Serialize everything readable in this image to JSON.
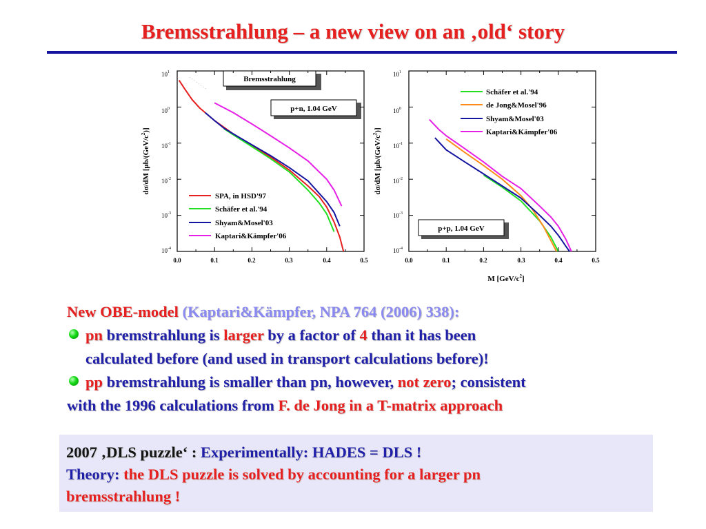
{
  "slide": {
    "title": "Bremsstrahlung – a new view on an ‚old‘ story",
    "colors": {
      "title": "#e61f1f",
      "rule": "#1414a0",
      "text_blue": "#1f1fa8",
      "text_red": "#e61f1f",
      "cite": "#8a8af0",
      "box_bg": "#e7e7f9",
      "bullet": "#13d913"
    }
  },
  "plots": {
    "y_ticks": [
      "10",
      "10",
      "10",
      "10",
      "10",
      "10"
    ],
    "y_exps": [
      "1",
      "0",
      "-1",
      "-2",
      "-3",
      "-4"
    ],
    "x_ticks": [
      "0.0",
      "0.1",
      "0.2",
      "0.3",
      "0.4",
      "0.5"
    ],
    "ylabel_main": "dσ/dM  [μb/(GeV/c",
    "ylabel_exp": "2",
    "ylabel_tail": ")]",
    "xlabel_main": "M  [GeV/c",
    "xlabel_exp": "2",
    "xlabel_tail": "]",
    "left": {
      "header_box": "Bremsstrahlung",
      "reaction_box": "p+n,  1.04 GeV",
      "legend": [
        "SPA, in HSD'97",
        "Schäfer et al.'94",
        "Shyam&Mosel'03",
        "Kaptari&Kämpfer'06"
      ]
    },
    "right": {
      "reaction_box": "p+p,  1.04 GeV",
      "legend": [
        "Schäfer et al.'94",
        "de Jong&Mosel'96",
        "Shyam&Mosel'03",
        "Kaptari&Kämpfer'06"
      ]
    }
  },
  "chart_data": [
    {
      "type": "line",
      "title": "Bremsstrahlung — p+n,  1.04 GeV",
      "xlabel": "M  [GeV/c2]",
      "ylabel": "dσ/dM  [μb/(GeV/c2)]",
      "xlim": [
        0.0,
        0.5
      ],
      "ylim": [
        0.0001,
        10
      ],
      "yscale": "log",
      "legend_position": "bottom-left",
      "series": [
        {
          "name": "SPA, in HSD'97",
          "color": "#e61f1f",
          "x": [
            0.005,
            0.02,
            0.04,
            0.06,
            0.075,
            0.1,
            0.15,
            0.2,
            0.25,
            0.3,
            0.35,
            0.38,
            0.4,
            0.42,
            0.435,
            0.445
          ],
          "y": [
            5.5,
            3.2,
            1.6,
            0.95,
            0.7,
            0.42,
            0.18,
            0.085,
            0.041,
            0.018,
            0.0065,
            0.0033,
            0.0017,
            0.00065,
            0.00025,
            0.0001
          ]
        },
        {
          "name": "Schäfer et al.'94",
          "color": "#21e021",
          "x": [
            0.125,
            0.15,
            0.2,
            0.25,
            0.3,
            0.35,
            0.38,
            0.4,
            0.42
          ],
          "y": [
            0.25,
            0.17,
            0.08,
            0.037,
            0.016,
            0.005,
            0.0022,
            0.0011,
            0.00035
          ]
        },
        {
          "name": "Shyam&Mosel'03",
          "color": "#1414a0",
          "x": [
            0.075,
            0.1,
            0.125,
            0.15,
            0.2,
            0.25,
            0.3,
            0.35,
            0.4,
            0.42,
            0.435
          ],
          "y": [
            0.7,
            0.42,
            0.26,
            0.18,
            0.09,
            0.045,
            0.021,
            0.009,
            0.0024,
            0.0012,
            0.0005
          ]
        },
        {
          "name": "Kaptari&Kämpfer'06",
          "color": "#e61fe6",
          "x": [
            0.1,
            0.15,
            0.2,
            0.25,
            0.3,
            0.35,
            0.4,
            0.42,
            0.44
          ],
          "y": [
            1.3,
            0.7,
            0.34,
            0.16,
            0.074,
            0.032,
            0.01,
            0.005,
            0.0018
          ]
        }
      ]
    },
    {
      "type": "line",
      "title": "p+p,  1.04 GeV",
      "xlabel": "M  [GeV/c2]",
      "ylabel": "dσ/dM  [μb/(GeV/c2)]",
      "xlim": [
        0.0,
        0.5
      ],
      "ylim": [
        0.0001,
        10
      ],
      "yscale": "log",
      "legend_position": "top-right",
      "series": [
        {
          "name": "Schäfer et al.'94",
          "color": "#21e021",
          "x": [
            0.2,
            0.25,
            0.3,
            0.35,
            0.38,
            0.4
          ],
          "y": [
            0.013,
            0.006,
            0.0025,
            0.0007,
            0.00025,
            0.0001
          ]
        },
        {
          "name": "de Jong&Mosel'96",
          "color": "#ff8c1a",
          "x": [
            0.1,
            0.15,
            0.2,
            0.25,
            0.3,
            0.33,
            0.36,
            0.38,
            0.395
          ],
          "y": [
            0.13,
            0.055,
            0.024,
            0.01,
            0.0035,
            0.0015,
            0.0005,
            0.0002,
            0.0001
          ]
        },
        {
          "name": "Shyam&Mosel'03",
          "color": "#1414a0",
          "x": [
            0.07,
            0.1,
            0.15,
            0.2,
            0.25,
            0.3,
            0.35,
            0.38,
            0.4,
            0.42,
            0.43
          ],
          "y": [
            0.14,
            0.065,
            0.03,
            0.014,
            0.0065,
            0.003,
            0.001,
            0.0005,
            0.00028,
            0.00014,
            0.0001
          ]
        },
        {
          "name": "Kaptari&Kämpfer'06",
          "color": "#e61fe6",
          "x": [
            0.055,
            0.08,
            0.1,
            0.15,
            0.2,
            0.25,
            0.3,
            0.35,
            0.38,
            0.4,
            0.42,
            0.435
          ],
          "y": [
            0.45,
            0.24,
            0.16,
            0.07,
            0.03,
            0.012,
            0.0055,
            0.0018,
            0.0009,
            0.0005,
            0.00022,
            0.0001
          ]
        }
      ]
    }
  ],
  "text": {
    "intro_red": "New OBE-model",
    "intro_cite": "(Kaptari&Kämpfer, NPA 764 (2006) 338):",
    "b1_pn": "pn",
    "b1_a": " bremstrahlung is ",
    "b1_larger": "larger",
    "b1_b": " by a factor of ",
    "b1_four": "4",
    "b1_c": " than it has been",
    "b1_line2": "calculated before (and used in transport calculations before)!",
    "b2_pp": "pp",
    "b2_a": " bremstrahlung is smaller than pn, however, ",
    "b2_notzero": "not zero",
    "b2_b": "; consistent",
    "b2_line2": "with the 1996 calculations from ",
    "b2_fdejong": "F. de Jong in a T-matrix approach"
  },
  "summary": {
    "l1_dark": "2007 ‚DLS puzzle‘ : ",
    "l1_blue": "Experimentally:  HADES = DLS !",
    "l2_blue": "Theory: ",
    "l2_red": " the DLS puzzle is solved by accounting for a larger pn",
    "l3_red": "bremsstrahlung !"
  }
}
